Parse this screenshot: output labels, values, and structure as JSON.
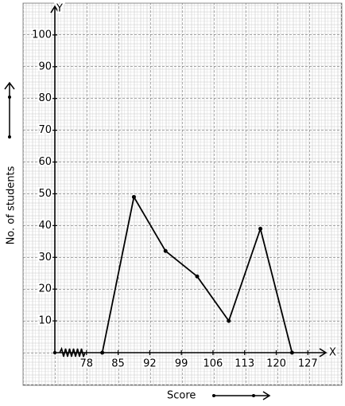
{
  "chart_data": {
    "type": "line",
    "x_label": "Score",
    "y_label": "No. of students",
    "x_axis_letter": "X",
    "y_axis_letter": "Y",
    "x": [
      81.5,
      88.5,
      95.5,
      102.5,
      109.5,
      116.5,
      123.5
    ],
    "values": [
      0,
      49,
      32,
      24,
      10,
      39,
      0
    ],
    "color": "#000000",
    "xlim": [
      71,
      131
    ],
    "xticks": [
      78,
      85,
      92,
      99,
      106,
      113,
      120,
      127
    ],
    "ylim": [
      0,
      109
    ],
    "yticks": [
      10,
      20,
      30,
      40,
      50,
      60,
      70,
      80,
      90,
      100
    ],
    "grid": true
  }
}
